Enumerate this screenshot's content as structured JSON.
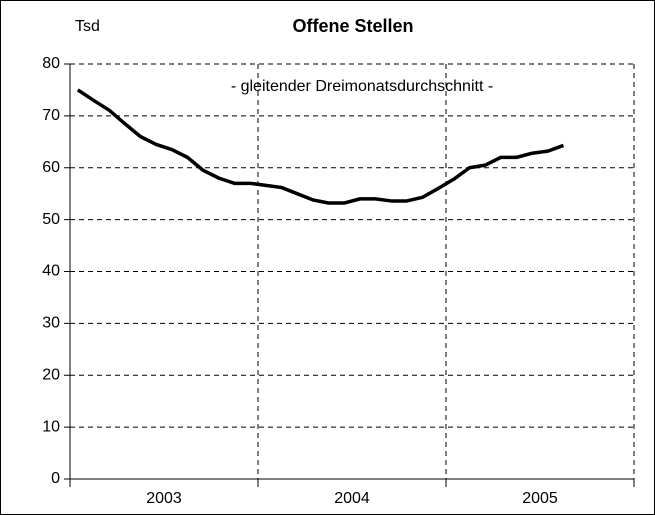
{
  "chart_data": {
    "type": "line",
    "title": "Offene Stellen",
    "y_unit": "Tsd",
    "annotation": "- gleitender Dreimonatsdurchschnitt -",
    "x_groups": [
      {
        "label": "2003",
        "count": 12
      },
      {
        "label": "2004",
        "count": 12
      },
      {
        "label": "2005",
        "count": 12
      }
    ],
    "categories": [
      null,
      null,
      null,
      null,
      null,
      null,
      null,
      null,
      null,
      null,
      null,
      null,
      null,
      null,
      null,
      null,
      null,
      null,
      null,
      null,
      null,
      null,
      null,
      null,
      null,
      null,
      null,
      null,
      null,
      null,
      null,
      null
    ],
    "series": [
      {
        "color": "#000000",
        "values": [
          75,
          73,
          71.1,
          68.5,
          66,
          64.5,
          63.5,
          62,
          59.5,
          58,
          57,
          57,
          56.6,
          56.2,
          55,
          53.8,
          53.2,
          53.2,
          54,
          54,
          53.6,
          53.6,
          54.3,
          56,
          57.8,
          60,
          60.5,
          62,
          62,
          62.8,
          63.2,
          64.3
        ]
      }
    ],
    "ylim": [
      0,
      80
    ],
    "yticks": [
      0,
      10,
      20,
      30,
      40,
      50,
      60,
      70,
      80
    ],
    "grid": true
  }
}
